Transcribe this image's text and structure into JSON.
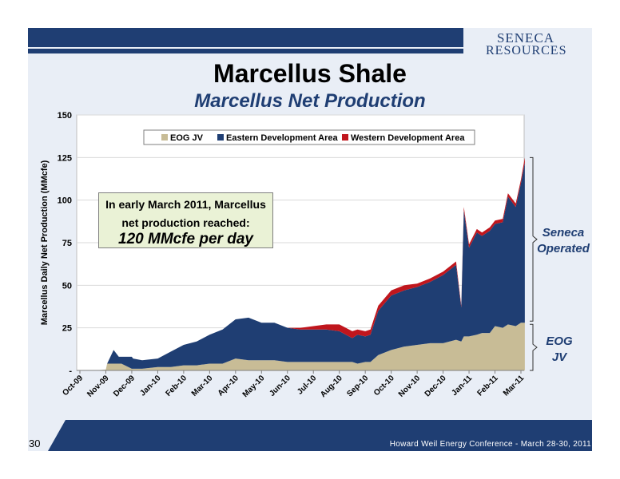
{
  "header": {
    "title": "Marcellus Shale",
    "subtitle": "Marcellus Net Production",
    "logo_line1": "SENECA",
    "logo_line2": "RESOURCES"
  },
  "callout": {
    "line1": "In early March 2011, Marcellus",
    "line2": "net production reached:",
    "highlight": "120 MMcfe per day"
  },
  "brackets": {
    "upper": [
      "Seneca",
      "Operated"
    ],
    "lower": [
      "EOG",
      "JV"
    ]
  },
  "footer": {
    "page_number": "30",
    "conference": "Howard Weil Energy Conference - March 28-30, 2011"
  },
  "colors": {
    "eog": "#c8bc96",
    "eastern": "#1f3e73",
    "western": "#c0161d",
    "navy": "#1f3e73"
  },
  "chart_data": {
    "type": "area",
    "stacked": true,
    "ylabel": "Marcellus Daily Net Production (MMcfe)",
    "ylim": [
      0,
      150
    ],
    "yticks": [
      0,
      25,
      50,
      75,
      100,
      125,
      150
    ],
    "ytick_labels": [
      "-",
      "25",
      "50",
      "75",
      "100",
      "125",
      "150"
    ],
    "xticks": [
      "Oct-09",
      "Nov-09",
      "Dec-09",
      "Jan-10",
      "Feb-10",
      "Mar-10",
      "Apr-10",
      "May-10",
      "Jun-10",
      "Jul-10",
      "Aug-10",
      "Sep-10",
      "Oct-10",
      "Nov-10",
      "Dec-10",
      "Jan-11",
      "Feb-11",
      "Mar-11"
    ],
    "legend_placement": "top",
    "grid": "horizontal",
    "x": [
      0,
      0.5,
      1.0,
      1.05,
      1.3,
      1.5,
      1.6,
      2.0,
      2.05,
      2.4,
      3.0,
      3.5,
      4.0,
      4.5,
      5.0,
      5.5,
      6.0,
      6.5,
      7.0,
      7.5,
      8.0,
      8.5,
      9.0,
      9.5,
      10.0,
      10.5,
      10.7,
      11.0,
      11.2,
      11.5,
      12.0,
      12.5,
      13.0,
      13.5,
      14.0,
      14.5,
      14.7,
      14.8,
      15.0,
      15.3,
      15.5,
      15.8,
      16.0,
      16.3,
      16.5,
      16.8,
      17.0,
      17.15
    ],
    "series": [
      {
        "name": "EOG JV",
        "values": [
          0,
          0,
          0.5,
          4,
          4,
          4,
          4,
          1,
          1,
          1,
          2,
          2,
          3,
          3,
          4,
          4,
          7,
          6,
          6,
          6,
          5,
          5,
          5,
          5,
          5,
          5,
          4,
          5,
          5,
          9,
          12,
          14,
          15,
          16,
          16,
          18,
          17,
          20,
          20,
          21,
          22,
          22,
          26,
          25,
          27,
          26,
          28,
          28
        ]
      },
      {
        "name": "Eastern Development Area",
        "values": [
          0,
          0,
          0,
          0,
          8,
          4,
          4,
          7,
          6,
          5,
          5,
          9,
          12,
          14,
          17,
          20,
          23,
          25,
          22,
          22,
          20,
          19,
          19,
          19,
          18,
          14,
          17,
          15,
          16,
          26,
          32,
          33,
          34,
          36,
          40,
          44,
          20,
          74,
          52,
          60,
          57,
          60,
          60,
          62,
          75,
          70,
          82,
          94
        ]
      },
      {
        "name": "Western Development Area",
        "values": [
          0,
          0,
          0,
          0,
          0,
          0,
          0,
          0,
          0,
          0,
          0,
          0,
          0,
          0,
          0,
          0,
          0,
          0,
          0,
          0,
          0,
          1,
          2,
          3,
          4,
          4,
          3,
          3,
          3,
          3,
          3,
          3,
          2,
          2,
          2,
          2,
          1,
          2,
          2,
          2,
          2,
          2,
          2,
          2,
          2,
          2,
          2,
          3
        ]
      }
    ]
  }
}
